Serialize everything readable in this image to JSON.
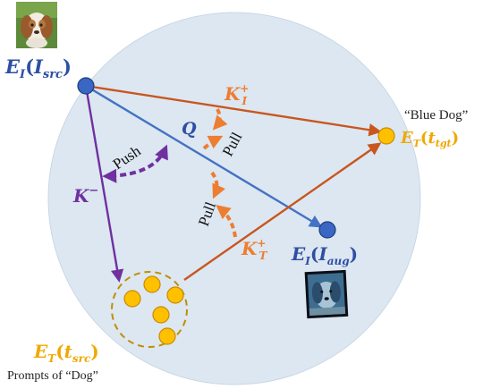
{
  "labels": {
    "e_i_src": {
      "base": "E",
      "sub1": "I",
      "open": "(",
      "var": "I",
      "sub2": "src",
      "close": ")"
    },
    "e_i_aug": {
      "base": "E",
      "sub1": "I",
      "open": "(",
      "var": "I",
      "sub2": "aug",
      "close": ")"
    },
    "e_t_tgt": {
      "base": "E",
      "sub1": "T",
      "open": "(",
      "var": "t",
      "sub2": "tgt",
      "close": ")"
    },
    "e_t_src": {
      "base": "E",
      "sub1": "T",
      "open": "(",
      "var": "t",
      "sub2": "src",
      "close": ")"
    },
    "k_i_plus": {
      "base": "K",
      "sub": "I",
      "sup": "+"
    },
    "k_t_plus": {
      "base": "K",
      "sub": "T",
      "sup": "+"
    },
    "k_minus": {
      "base": "K",
      "sup": "−"
    },
    "q": "Q",
    "pull_top": "Pull",
    "pull_bottom": "Pull",
    "push": "Push",
    "blue_dog": "“Blue Dog”",
    "prompts_of_dog": "Prompts of “Dog”"
  },
  "colors": {
    "sphere_fill": "#dce7f1",
    "sphere_stroke": "#c9d8e6",
    "image_node": "#3a66c4",
    "text_node": "#ffc000",
    "orange": "#c9561e",
    "orange_arrow": "#ed7d31",
    "blue_arrow": "#4472c4",
    "purple": "#7030a0",
    "gold_label": "#f0a800",
    "dark_blue_label": "#2e4fa3"
  },
  "icons": {
    "source_image": "puppy-photo-icon",
    "augmented_image": "blue-puppy-photo-icon"
  }
}
